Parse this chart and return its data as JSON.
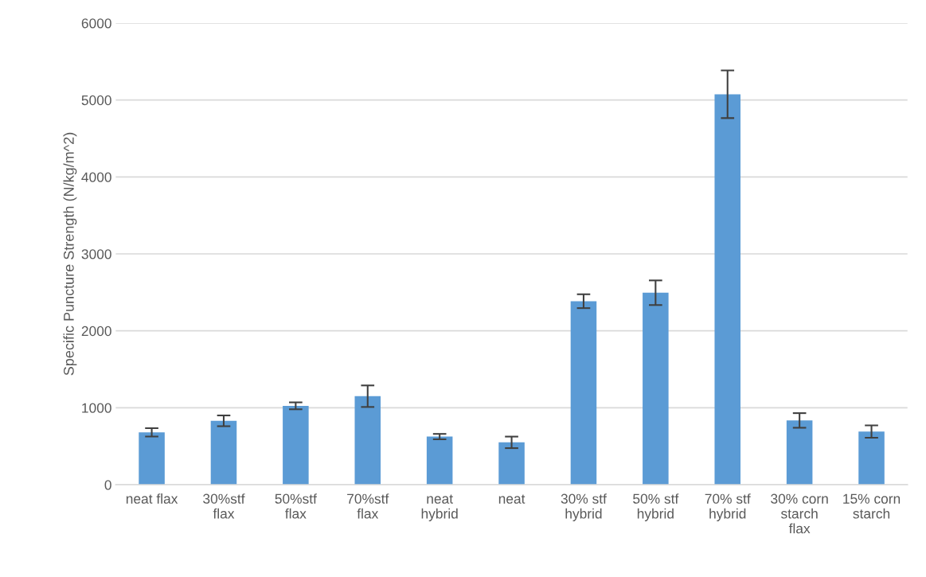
{
  "chart_data": {
    "type": "bar",
    "ylabel": "Specific Puncture Strength (N/kg/m^2)",
    "categories": [
      "neat flax",
      "30%stf\nflax",
      "50%stf\nflax",
      "70%stf\nflax",
      "neat\nhybrid",
      "neat",
      "30% stf\nhybrid",
      "50% stf\nhybrid",
      "70% stf\nhybrid",
      "30% corn\nstarch\nflax",
      "15% corn\nstarch"
    ],
    "values": [
      680,
      830,
      1025,
      1150,
      625,
      550,
      2385,
      2495,
      5075,
      835,
      690
    ],
    "errors": [
      55,
      70,
      45,
      140,
      35,
      75,
      90,
      160,
      310,
      95,
      80
    ],
    "color": "#5b9bd5",
    "ylim": [
      0,
      6000
    ],
    "yticks": [
      0,
      1000,
      2000,
      3000,
      4000,
      5000,
      6000
    ],
    "grid": "y"
  }
}
